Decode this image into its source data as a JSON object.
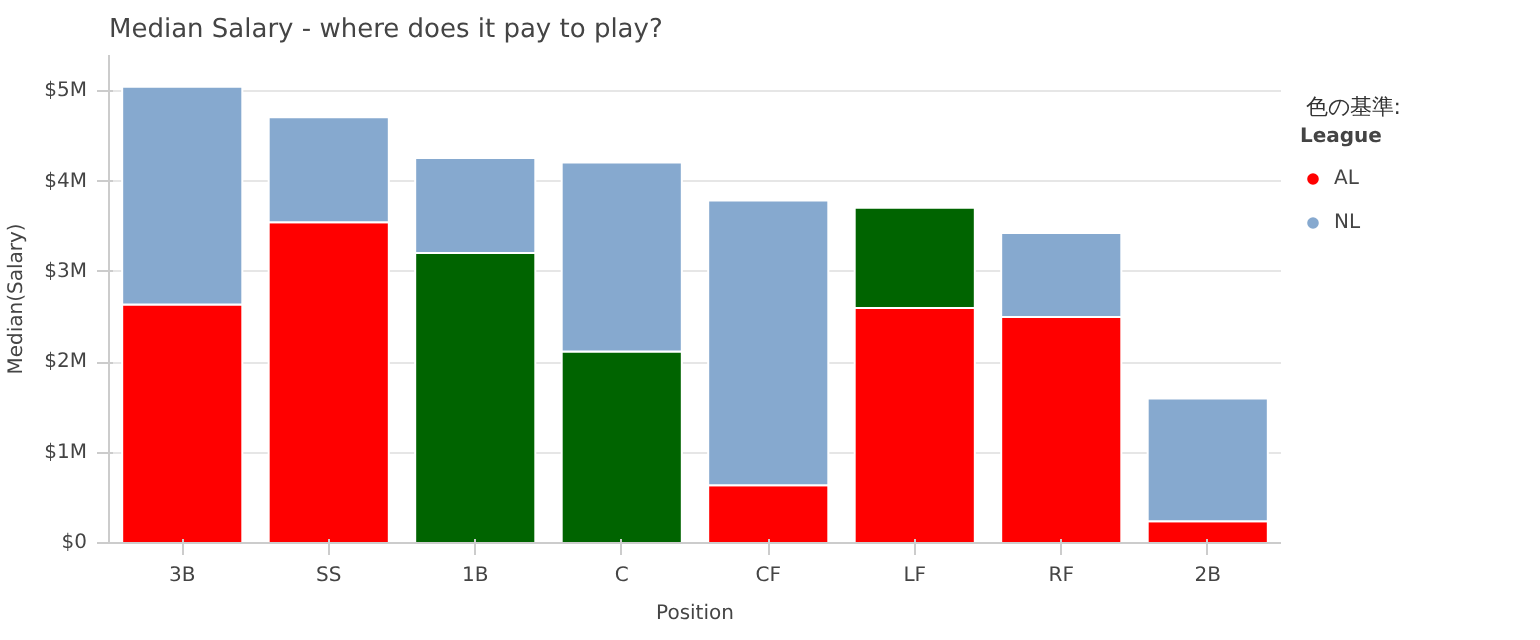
{
  "chart_data": {
    "type": "bar",
    "title": "Median Salary - where does it pay to play?",
    "xlabel": "Position",
    "ylabel": "Median(Salary)",
    "legend_title": "League",
    "annotations": [
      "色の基準:"
    ],
    "categories": [
      "3B",
      "SS",
      "1B",
      "C",
      "CF",
      "LF",
      "RF",
      "2B"
    ],
    "stacked": true,
    "series": [
      {
        "name": "AL",
        "color": "#ff0000",
        "colors": [
          "#ff0000",
          "#ff0000",
          "#006400",
          "#006400",
          "#ff0000",
          "#ff0000",
          "#ff0000",
          "#ff0000"
        ],
        "values": [
          2.64,
          3.55,
          3.21,
          2.12,
          0.64,
          2.6,
          2.5,
          0.24
        ]
      },
      {
        "name": "NL",
        "color": "#86a9cf",
        "colors": [
          "#86a9cf",
          "#86a9cf",
          "#86a9cf",
          "#86a9cf",
          "#86a9cf",
          "#006400",
          "#86a9cf",
          "#86a9cf"
        ],
        "values": [
          2.41,
          1.16,
          1.05,
          2.09,
          3.15,
          1.11,
          0.93,
          1.36
        ]
      }
    ],
    "ylim": [
      0,
      5.4
    ],
    "yticks": [
      {
        "value": 0,
        "label": "$0"
      },
      {
        "value": 1,
        "label": "$1M"
      },
      {
        "value": 2,
        "label": "$2M"
      },
      {
        "value": 3,
        "label": "$3M"
      },
      {
        "value": 4,
        "label": "$4M"
      },
      {
        "value": 5,
        "label": "$5M"
      }
    ],
    "grid": "y",
    "legend": "right"
  }
}
